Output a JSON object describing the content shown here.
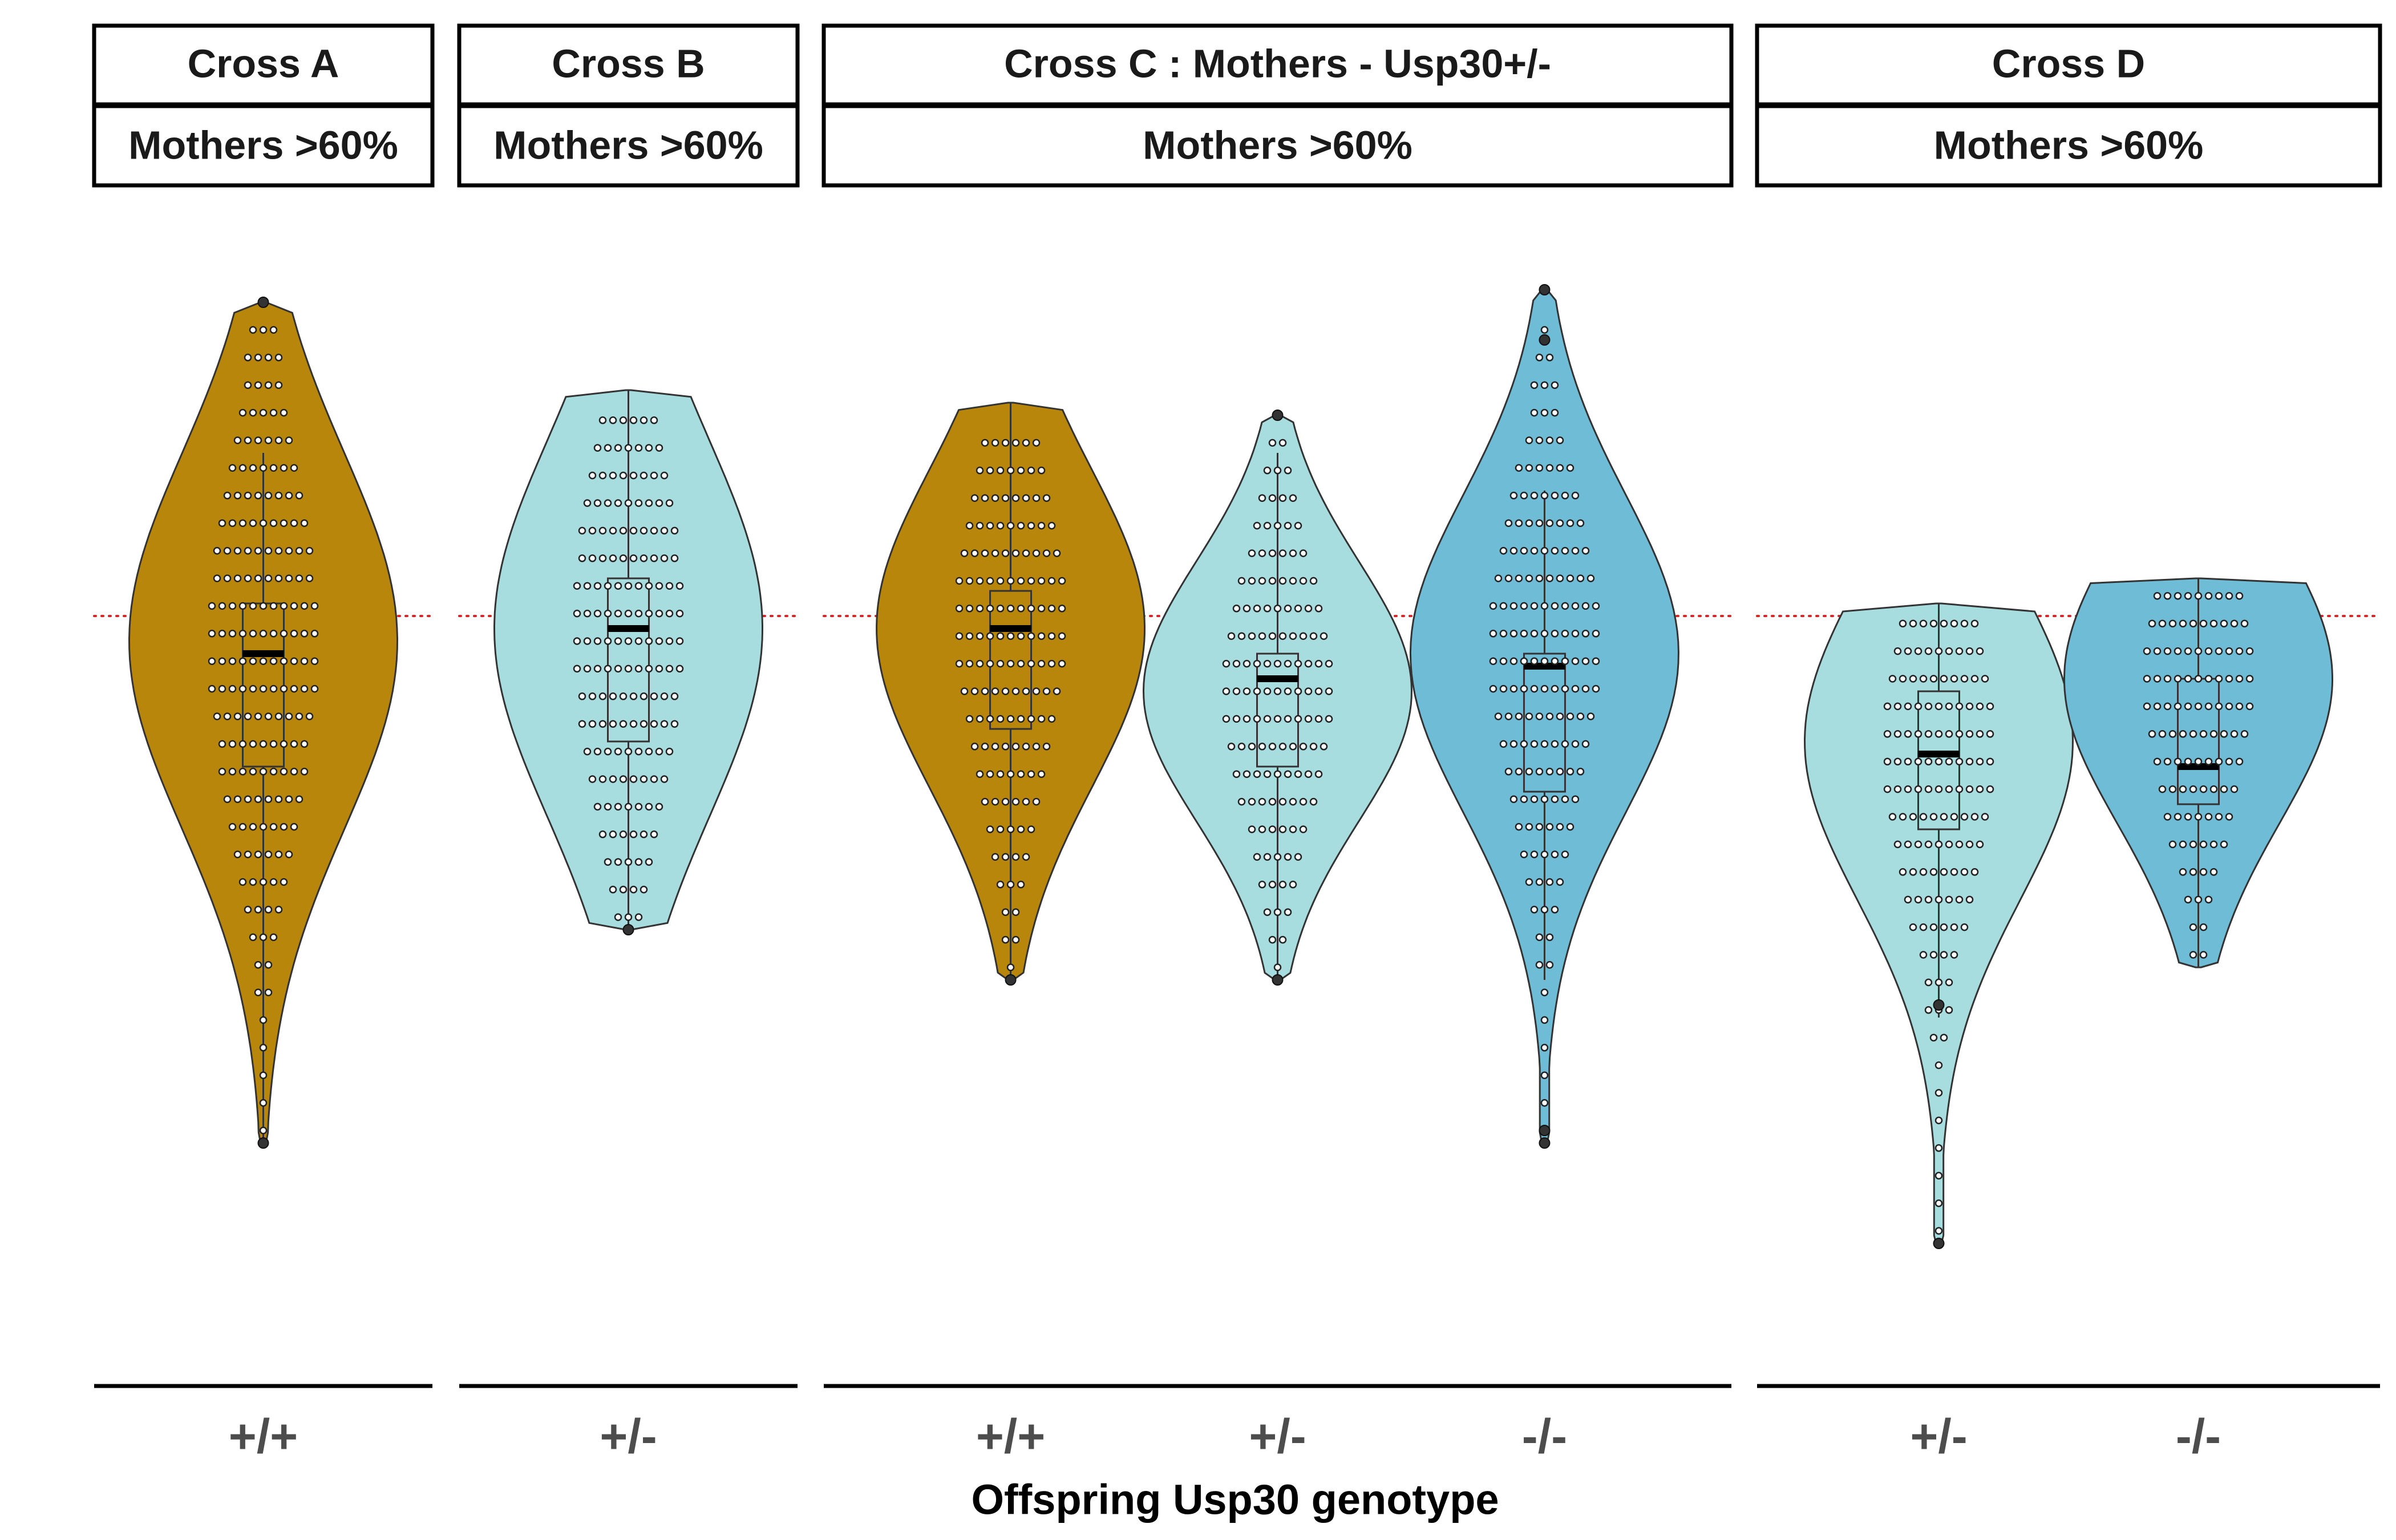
{
  "chart_data": {
    "type": "violin",
    "xlabel": "Offspring Usp30 genotype",
    "ylabel": "",
    "ylim": [
      0,
      100
    ],
    "reference_line": {
      "y": 60,
      "color": "#d62728",
      "style": "dotted"
    },
    "colors": {
      "+/+": "#b8860b",
      "+/-": "#a8dde0",
      "-/-": "#6fbcd6"
    },
    "panels": [
      {
        "title": "Cross A",
        "subtitle": "Mothers >60%",
        "groups": [
          {
            "genotype": "+/+",
            "min": 18,
            "q1": 48,
            "median": 57,
            "q3": 61,
            "max": 73,
            "outliers": [
              85,
              18
            ],
            "density_peak": 58
          }
        ]
      },
      {
        "title": "Cross B",
        "subtitle": "Mothers >60%",
        "groups": [
          {
            "genotype": "+/-",
            "min": 35,
            "q1": 50,
            "median": 59,
            "q3": 63,
            "max": 78,
            "outliers": [
              35
            ],
            "density_peak": 59
          }
        ]
      },
      {
        "title": "Cross C : Mothers - Usp30+/-",
        "subtitle": "Mothers >60%",
        "groups": [
          {
            "genotype": "+/+",
            "min": 31,
            "q1": 51,
            "median": 59,
            "q3": 62,
            "max": 77,
            "outliers": [
              31
            ],
            "density_peak": 59
          },
          {
            "genotype": "+/-",
            "min": 31,
            "q1": 48,
            "median": 55,
            "q3": 57,
            "max": 73,
            "outliers": [
              76,
              31
            ],
            "density_peak": 54
          },
          {
            "genotype": "-/-",
            "min": 31,
            "q1": 46,
            "median": 56,
            "q3": 57,
            "max": 70,
            "outliers": [
              86,
              82,
              19,
              18
            ],
            "density_peak": 57
          }
        ]
      },
      {
        "title": "Cross D",
        "subtitle": "Mothers >60%",
        "groups": [
          {
            "genotype": "+/-",
            "min": 28,
            "q1": 43,
            "median": 49,
            "q3": 54,
            "max": 61,
            "outliers": [
              29,
              10
            ],
            "density_peak": 50
          },
          {
            "genotype": "-/-",
            "min": 32,
            "q1": 45,
            "median": 48,
            "q3": 55,
            "max": 63,
            "outliers": [],
            "density_peak": 55
          }
        ]
      }
    ]
  }
}
